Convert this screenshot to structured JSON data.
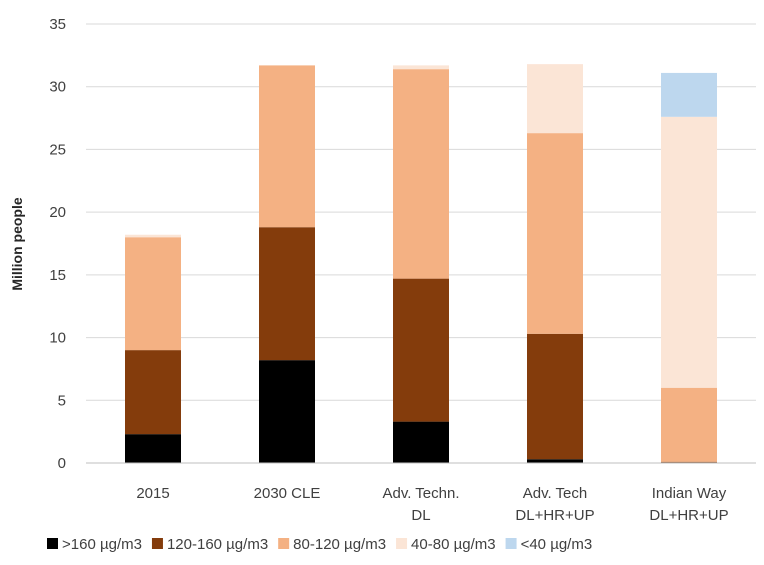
{
  "chart_data": {
    "type": "bar",
    "stacked": true,
    "orientation": "vertical",
    "title": "",
    "xlabel": "",
    "ylabel": "Million people",
    "ylim": [
      0,
      35
    ],
    "yticks": [
      0,
      5,
      10,
      15,
      20,
      25,
      30,
      35
    ],
    "grid": true,
    "legend_position": "bottom",
    "categories": [
      [
        "2015"
      ],
      [
        "2030 CLE"
      ],
      [
        "Adv. Techn.",
        "DL"
      ],
      [
        "Adv. Tech",
        "DL+HR+UP"
      ],
      [
        "Indian Way",
        "DL+HR+UP"
      ]
    ],
    "series": [
      {
        "name": ">160 µg/m3",
        "color": "#000000",
        "values": [
          2.3,
          8.2,
          3.3,
          0.3,
          0.05
        ]
      },
      {
        "name": "120-160 µg/m3",
        "color": "#843C0C",
        "values": [
          6.7,
          10.6,
          11.4,
          10.0,
          0.05
        ]
      },
      {
        "name": "80-120 µg/m3",
        "color": "#F4B183",
        "values": [
          9.0,
          12.9,
          16.7,
          16.0,
          5.9
        ]
      },
      {
        "name": "40-80 µg/m3",
        "color": "#FBE5D6",
        "values": [
          0.2,
          0.0,
          0.3,
          5.5,
          21.6
        ]
      },
      {
        "name": "<40 µg/m3",
        "color": "#BDD7EE",
        "values": [
          0.0,
          0.0,
          0.0,
          0.0,
          3.5
        ]
      }
    ]
  }
}
